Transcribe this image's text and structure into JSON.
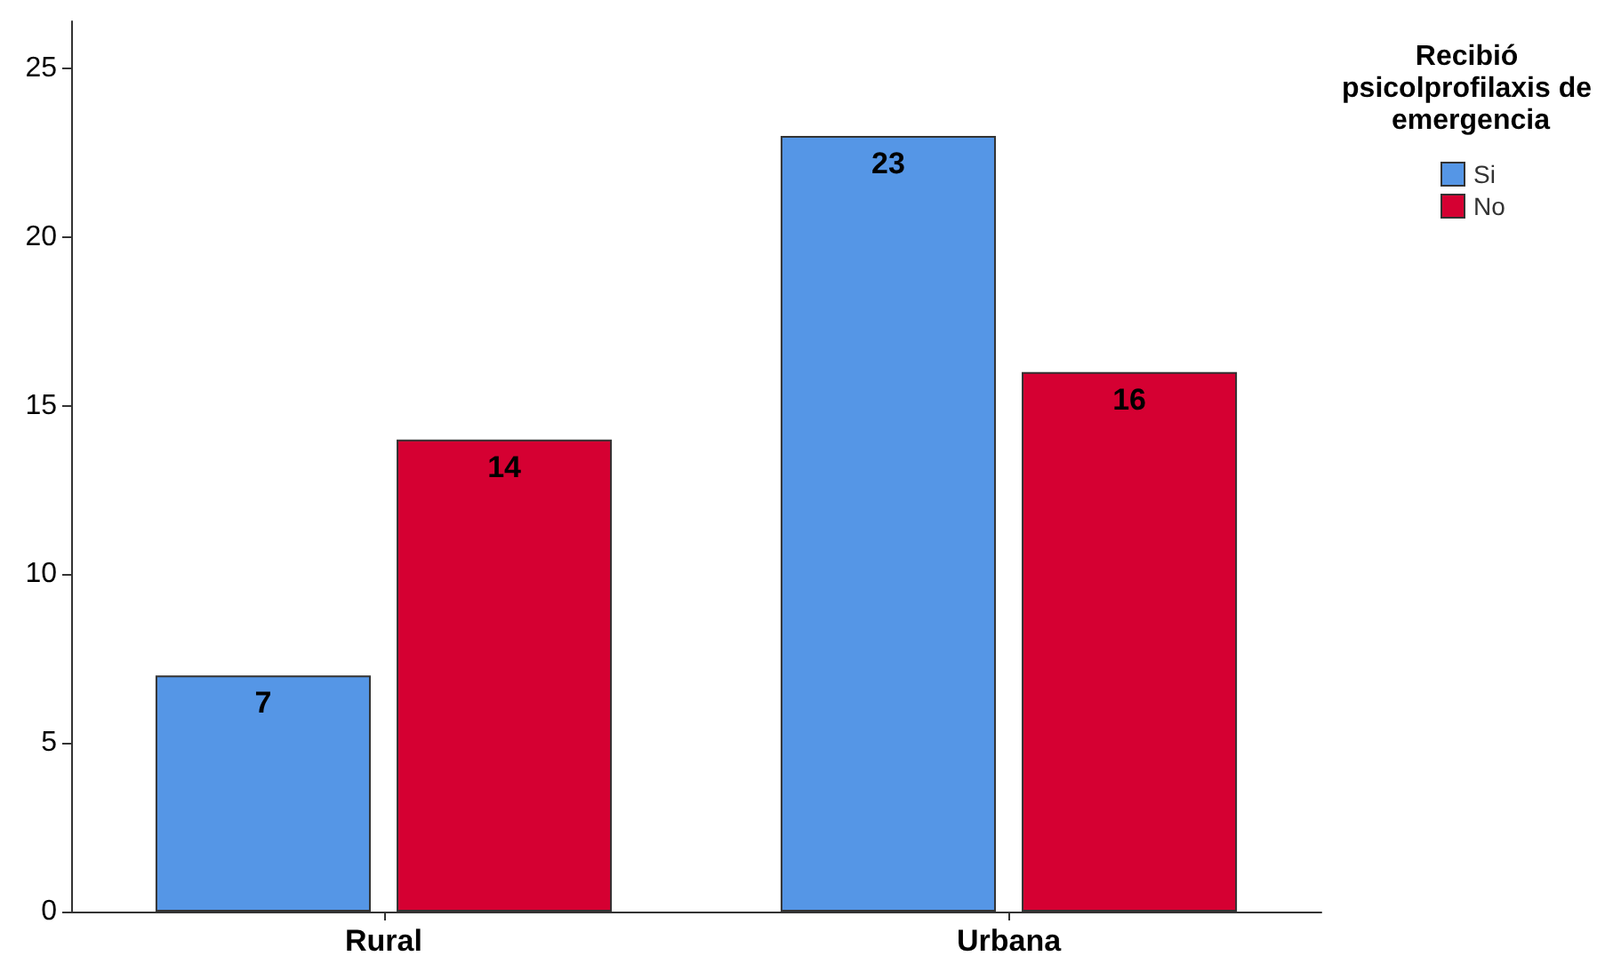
{
  "chart_data": {
    "type": "bar",
    "legend_title": "Recibió psicolprofilaxis de emergencia",
    "categories": [
      "Rural",
      "Urbana"
    ],
    "series": [
      {
        "name": "Si",
        "color": "#5596e6",
        "values": [
          7,
          23
        ]
      },
      {
        "name": "No",
        "color": "#d50032",
        "values": [
          14,
          16
        ]
      }
    ],
    "ylim": [
      0,
      26.4
    ],
    "yticks": [
      0,
      5,
      10,
      15,
      20,
      25
    ],
    "grid": false,
    "legend": "right",
    "data_labels": true
  }
}
